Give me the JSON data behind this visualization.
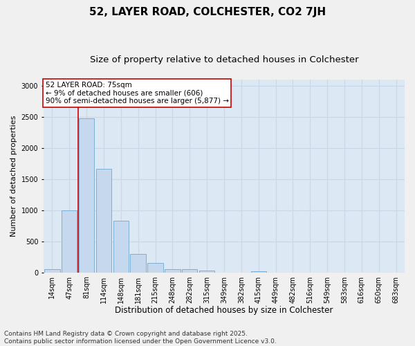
{
  "title_line1": "52, LAYER ROAD, COLCHESTER, CO2 7JH",
  "title_line2": "Size of property relative to detached houses in Colchester",
  "xlabel": "Distribution of detached houses by size in Colchester",
  "ylabel": "Number of detached properties",
  "bar_labels": [
    "14sqm",
    "47sqm",
    "81sqm",
    "114sqm",
    "148sqm",
    "181sqm",
    "215sqm",
    "248sqm",
    "282sqm",
    "315sqm",
    "349sqm",
    "382sqm",
    "415sqm",
    "449sqm",
    "482sqm",
    "516sqm",
    "549sqm",
    "583sqm",
    "616sqm",
    "650sqm",
    "683sqm"
  ],
  "bar_values": [
    50,
    1000,
    2480,
    1670,
    830,
    300,
    150,
    55,
    50,
    30,
    0,
    0,
    15,
    0,
    0,
    0,
    0,
    0,
    0,
    0,
    0
  ],
  "bar_color": "#c5d8ee",
  "bar_edge_color": "#7aafd4",
  "vline_x_idx": 1.5,
  "vline_color": "#cc0000",
  "annotation_text": "52 LAYER ROAD: 75sqm\n← 9% of detached houses are smaller (606)\n90% of semi-detached houses are larger (5,877) →",
  "annotation_box_color": "#ffffff",
  "annotation_box_edge": "#cc0000",
  "ylim": [
    0,
    3100
  ],
  "yticks": [
    0,
    500,
    1000,
    1500,
    2000,
    2500,
    3000
  ],
  "grid_color": "#c8d8e8",
  "bg_color": "#dce8f4",
  "fig_bg_color": "#f0f0f0",
  "footer_line1": "Contains HM Land Registry data © Crown copyright and database right 2025.",
  "footer_line2": "Contains public sector information licensed under the Open Government Licence v3.0.",
  "title1_fontsize": 11,
  "title2_fontsize": 9.5,
  "xlabel_fontsize": 8.5,
  "ylabel_fontsize": 8,
  "tick_fontsize": 7,
  "annotation_fontsize": 7.5,
  "footer_fontsize": 6.5
}
